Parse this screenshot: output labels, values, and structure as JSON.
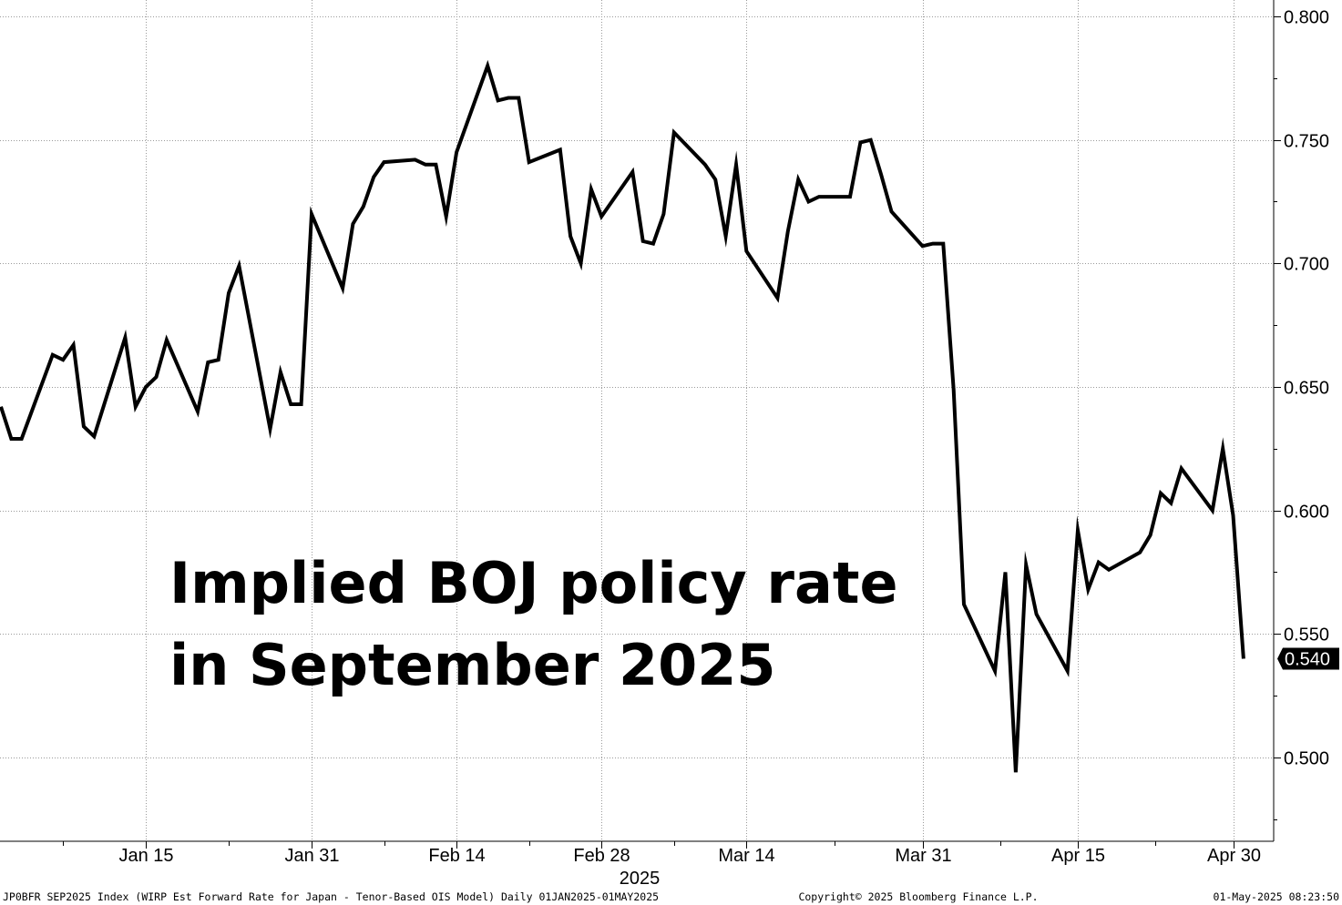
{
  "chart_data": {
    "type": "line",
    "title_lines": [
      "Implied BOJ policy rate",
      "in September 2025"
    ],
    "year_label": "2025",
    "x_tick_labels": [
      {
        "label": "Jan 15",
        "date": "2025-01-15"
      },
      {
        "label": "Jan 31",
        "date": "2025-01-31"
      },
      {
        "label": "Feb 14",
        "date": "2025-02-14"
      },
      {
        "label": "Feb 28",
        "date": "2025-02-28"
      },
      {
        "label": "Mar 14",
        "date": "2025-03-14"
      },
      {
        "label": "Mar 31",
        "date": "2025-03-31"
      },
      {
        "label": "Apr 15",
        "date": "2025-04-15"
      },
      {
        "label": "Apr 30",
        "date": "2025-04-30"
      }
    ],
    "y_ticks": [
      0.5,
      0.55,
      0.6,
      0.65,
      0.7,
      0.75,
      0.8
    ],
    "y_tick_labels": [
      "0.500",
      "0.550",
      "0.600",
      "0.650",
      "0.700",
      "0.750",
      "0.800"
    ],
    "ylim": [
      0.475,
      0.8
    ],
    "xlim": [
      "2025-01-01",
      "2025-05-04"
    ],
    "grid": true,
    "last_value_label": "0.540",
    "line_color": "#000000",
    "series": [
      {
        "points": [
          [
            "2025-01-01",
            0.642
          ],
          [
            "2025-01-02",
            0.629
          ],
          [
            "2025-01-03",
            0.629
          ],
          [
            "2025-01-06",
            0.663
          ],
          [
            "2025-01-07",
            0.661
          ],
          [
            "2025-01-08",
            0.667
          ],
          [
            "2025-01-09",
            0.634
          ],
          [
            "2025-01-10",
            0.63
          ],
          [
            "2025-01-13",
            0.67
          ],
          [
            "2025-01-14",
            0.642
          ],
          [
            "2025-01-15",
            0.65
          ],
          [
            "2025-01-16",
            0.654
          ],
          [
            "2025-01-17",
            0.669
          ],
          [
            "2025-01-20",
            0.64
          ],
          [
            "2025-01-21",
            0.66
          ],
          [
            "2025-01-22",
            0.661
          ],
          [
            "2025-01-23",
            0.688
          ],
          [
            "2025-01-24",
            0.699
          ],
          [
            "2025-01-27",
            0.633
          ],
          [
            "2025-01-28",
            0.656
          ],
          [
            "2025-01-29",
            0.643
          ],
          [
            "2025-01-30",
            0.643
          ],
          [
            "2025-01-31",
            0.72
          ],
          [
            "2025-02-03",
            0.69
          ],
          [
            "2025-02-04",
            0.716
          ],
          [
            "2025-02-05",
            0.723
          ],
          [
            "2025-02-06",
            0.735
          ],
          [
            "2025-02-07",
            0.741
          ],
          [
            "2025-02-10",
            0.742
          ],
          [
            "2025-02-11",
            0.74
          ],
          [
            "2025-02-12",
            0.74
          ],
          [
            "2025-02-13",
            0.719
          ],
          [
            "2025-02-14",
            0.745
          ],
          [
            "2025-02-17",
            0.78
          ],
          [
            "2025-02-18",
            0.766
          ],
          [
            "2025-02-19",
            0.767
          ],
          [
            "2025-02-20",
            0.767
          ],
          [
            "2025-02-21",
            0.741
          ],
          [
            "2025-02-24",
            0.746
          ],
          [
            "2025-02-25",
            0.711
          ],
          [
            "2025-02-26",
            0.7
          ],
          [
            "2025-02-27",
            0.73
          ],
          [
            "2025-02-28",
            0.719
          ],
          [
            "2025-03-03",
            0.737
          ],
          [
            "2025-03-04",
            0.709
          ],
          [
            "2025-03-05",
            0.708
          ],
          [
            "2025-03-06",
            0.72
          ],
          [
            "2025-03-07",
            0.753
          ],
          [
            "2025-03-10",
            0.74
          ],
          [
            "2025-03-11",
            0.734
          ],
          [
            "2025-03-12",
            0.711
          ],
          [
            "2025-03-13",
            0.74
          ],
          [
            "2025-03-14",
            0.705
          ],
          [
            "2025-03-17",
            0.686
          ],
          [
            "2025-03-18",
            0.713
          ],
          [
            "2025-03-19",
            0.734
          ],
          [
            "2025-03-20",
            0.725
          ],
          [
            "2025-03-21",
            0.727
          ],
          [
            "2025-03-24",
            0.727
          ],
          [
            "2025-03-25",
            0.749
          ],
          [
            "2025-03-26",
            0.75
          ],
          [
            "2025-03-27",
            0.736
          ],
          [
            "2025-03-28",
            0.721
          ],
          [
            "2025-03-31",
            0.707
          ],
          [
            "2025-04-01",
            0.708
          ],
          [
            "2025-04-02",
            0.708
          ],
          [
            "2025-04-03",
            0.649
          ],
          [
            "2025-04-04",
            0.562
          ],
          [
            "2025-04-07",
            0.535
          ],
          [
            "2025-04-08",
            0.575
          ],
          [
            "2025-04-09",
            0.494
          ],
          [
            "2025-04-10",
            0.578
          ],
          [
            "2025-04-11",
            0.558
          ],
          [
            "2025-04-14",
            0.535
          ],
          [
            "2025-04-15",
            0.592
          ],
          [
            "2025-04-16",
            0.568
          ],
          [
            "2025-04-17",
            0.579
          ],
          [
            "2025-04-18",
            0.576
          ],
          [
            "2025-04-21",
            0.583
          ],
          [
            "2025-04-22",
            0.59
          ],
          [
            "2025-04-23",
            0.607
          ],
          [
            "2025-04-24",
            0.603
          ],
          [
            "2025-04-25",
            0.617
          ],
          [
            "2025-04-28",
            0.6
          ],
          [
            "2025-04-29",
            0.625
          ],
          [
            "2025-04-30",
            0.598
          ],
          [
            "2025-05-01",
            0.54
          ]
        ]
      }
    ]
  },
  "footer": {
    "left": "JP0BFR SEP2025 Index (WIRP Est Forward Rate for Japan - Tenor-Based OIS Model)  Daily 01JAN2025-01MAY2025",
    "center": "Copyright© 2025 Bloomberg Finance L.P.",
    "right": "01-May-2025 08:23:50"
  }
}
